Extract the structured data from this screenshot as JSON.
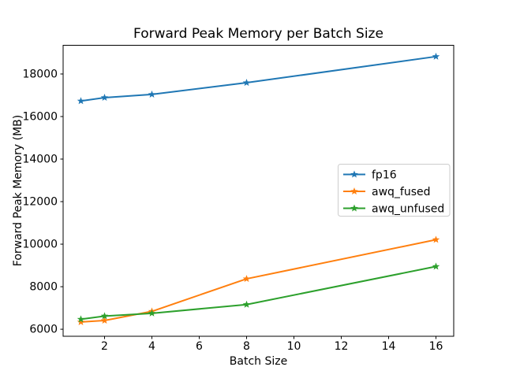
{
  "window": {
    "background": "#ffffff"
  },
  "chart_data": {
    "type": "line",
    "title": "Forward Peak Memory per Batch Size",
    "xlabel": "Batch Size",
    "ylabel": "Forward Peak Memory (MB)",
    "x": [
      1,
      2,
      4,
      8,
      16
    ],
    "series": [
      {
        "name": "fp16",
        "color": "#1f77b4",
        "marker": "star",
        "values": [
          16730,
          16890,
          17040,
          17590,
          18820
        ]
      },
      {
        "name": "awq_fused",
        "color": "#ff7f0e",
        "marker": "star",
        "values": [
          6340,
          6410,
          6840,
          8370,
          10210
        ]
      },
      {
        "name": "awq_unfused",
        "color": "#2ca02c",
        "marker": "star",
        "values": [
          6470,
          6620,
          6750,
          7160,
          8950
        ]
      }
    ],
    "xticks": [
      2,
      4,
      6,
      8,
      10,
      12,
      14,
      16
    ],
    "yticks": [
      6000,
      8000,
      10000,
      12000,
      14000,
      16000,
      18000
    ],
    "xlim": [
      0.25,
      16.75
    ],
    "ylim": [
      5670,
      19350
    ],
    "grid": false,
    "legend": {
      "entries": [
        "fp16",
        "awq_fused",
        "awq_unfused"
      ],
      "position": "center right",
      "border_color": "#cccccc",
      "background": "#ffffff"
    },
    "axis_color": "#000000",
    "text_color": "#000000"
  }
}
